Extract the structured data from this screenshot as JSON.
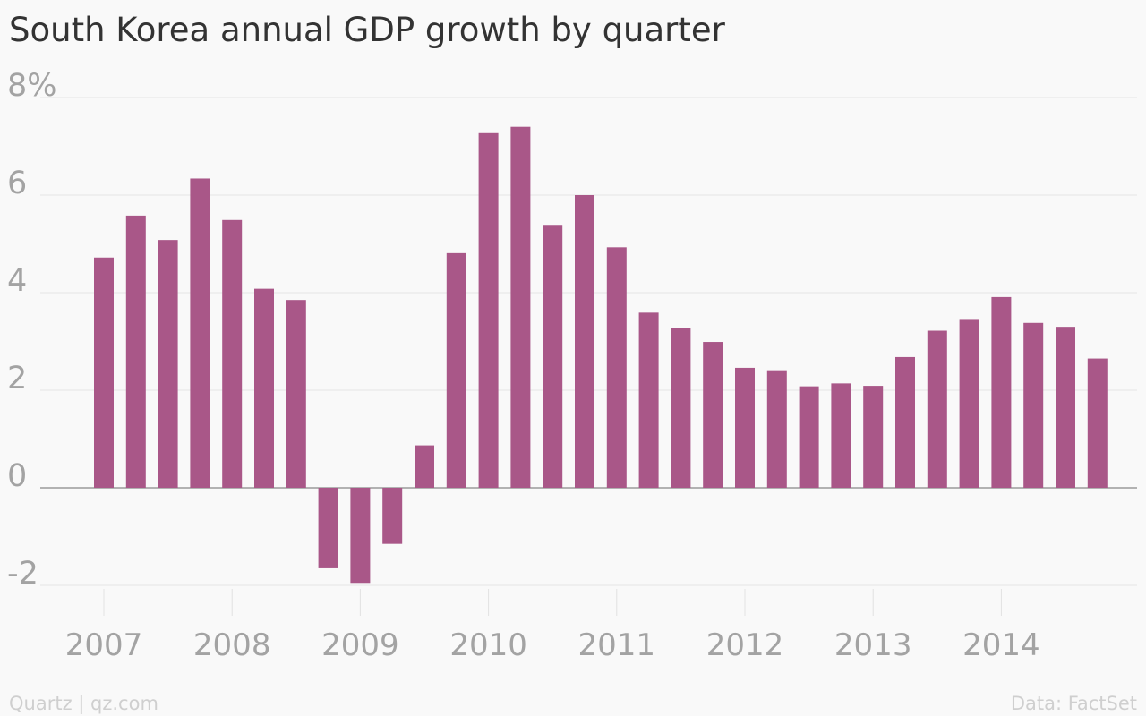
{
  "chart_data": {
    "type": "bar",
    "title": "South Korea annual GDP growth by quarter",
    "xlabel": "",
    "ylabel": "",
    "ylim": [
      -2.5,
      8
    ],
    "yticks": [
      8,
      6,
      4,
      2,
      0,
      -2
    ],
    "ytick_labels": [
      "8%",
      "6",
      "4",
      "2",
      "0",
      "-2"
    ],
    "xtick_labels": [
      "2007",
      "2008",
      "2009",
      "2010",
      "2011",
      "2012",
      "2013",
      "2014"
    ],
    "categories": [
      "2007 Q1",
      "2007 Q2",
      "2007 Q3",
      "2007 Q4",
      "2008 Q1",
      "2008 Q2",
      "2008 Q3",
      "2008 Q4",
      "2009 Q1",
      "2009 Q2",
      "2009 Q3",
      "2009 Q4",
      "2010 Q1",
      "2010 Q2",
      "2010 Q3",
      "2010 Q4",
      "2011 Q1",
      "2011 Q2",
      "2011 Q3",
      "2011 Q4",
      "2012 Q1",
      "2012 Q2",
      "2012 Q3",
      "2012 Q4",
      "2013 Q1",
      "2013 Q2",
      "2013 Q3",
      "2013 Q4",
      "2014 Q1",
      "2014 Q2",
      "2014 Q3",
      "2014 Q4"
    ],
    "values": [
      4.72,
      5.58,
      5.08,
      6.34,
      5.49,
      4.08,
      3.85,
      -1.65,
      -1.95,
      -1.15,
      0.87,
      4.81,
      7.27,
      7.4,
      5.39,
      6.0,
      4.93,
      3.59,
      3.28,
      2.99,
      2.46,
      2.41,
      2.08,
      2.14,
      2.09,
      2.68,
      3.22,
      3.46,
      3.91,
      3.38,
      3.3,
      2.65
    ],
    "grid": true,
    "bar_color": "#a95788"
  },
  "footer": {
    "source_left": "Quartz | qz.com",
    "source_right": "Data: FactSet"
  }
}
